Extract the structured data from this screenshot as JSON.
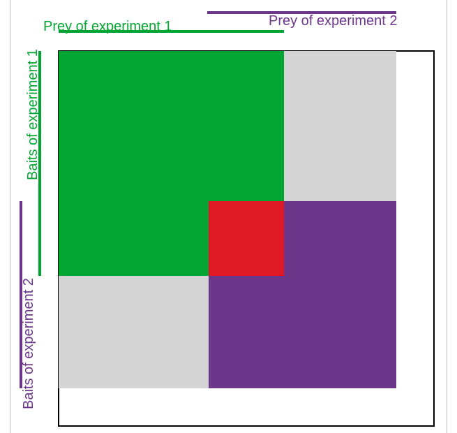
{
  "labels": {
    "prey_1": "Prey of experiment 1",
    "prey_2": "Prey of experiment 2",
    "baits_1": "Baits of experiment 1",
    "baits_2": "Baits of experiment 2"
  }
}
